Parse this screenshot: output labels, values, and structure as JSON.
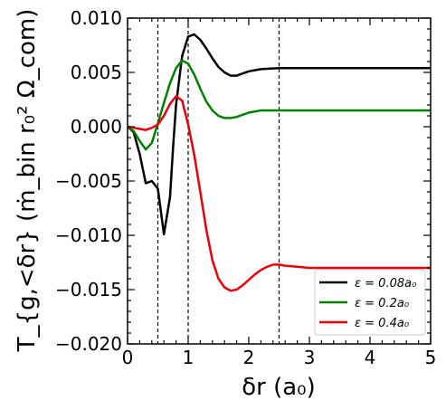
{
  "chart_data": {
    "type": "line",
    "xlabel": "δr (a₀)",
    "ylabel": "T_{g,<δr} (ṁ_bin r₀² Ω_com)",
    "xlim": [
      0,
      5
    ],
    "ylim": [
      -0.02,
      0.01
    ],
    "x_ticks": [
      "0",
      "1",
      "2",
      "3",
      "4",
      "5"
    ],
    "y_ticks": [
      "−0.020",
      "−0.015",
      "−0.010",
      "−0.005",
      "0.000",
      "0.005",
      "0.010"
    ],
    "x_tick_values": [
      0,
      1,
      2,
      3,
      4,
      5
    ],
    "y_tick_values": [
      -0.02,
      -0.015,
      -0.01,
      -0.005,
      0.0,
      0.005,
      0.01
    ],
    "vlines": [
      0.5,
      1.0,
      2.5
    ],
    "grid": false,
    "legend_position": "lower-right",
    "series": [
      {
        "name": "ε = 0.08a₀",
        "color": "#000000",
        "x": [
          0.0,
          0.1,
          0.2,
          0.3,
          0.4,
          0.5,
          0.6,
          0.7,
          0.75,
          0.8,
          0.9,
          1.0,
          1.1,
          1.2,
          1.3,
          1.4,
          1.5,
          1.6,
          1.7,
          1.8,
          1.9,
          2.0,
          2.2,
          2.5,
          3.0,
          3.5,
          4.0,
          4.5,
          5.0
        ],
        "y": [
          0.0,
          -0.0005,
          -0.0025,
          -0.0052,
          -0.005,
          -0.0057,
          -0.0099,
          -0.0065,
          -0.002,
          0.002,
          0.0065,
          0.0083,
          0.0085,
          0.008,
          0.0072,
          0.0063,
          0.0055,
          0.005,
          0.0047,
          0.0047,
          0.0049,
          0.0051,
          0.0053,
          0.0054,
          0.0054,
          0.0054,
          0.0054,
          0.0054,
          0.0054
        ]
      },
      {
        "name": "ε = 0.2a₀",
        "color": "#008000",
        "x": [
          0.0,
          0.1,
          0.2,
          0.3,
          0.4,
          0.5,
          0.6,
          0.7,
          0.8,
          0.9,
          1.0,
          1.1,
          1.2,
          1.3,
          1.4,
          1.5,
          1.6,
          1.7,
          1.8,
          1.9,
          2.0,
          2.2,
          2.5,
          3.0,
          3.5,
          4.0,
          4.5,
          5.0
        ],
        "y": [
          0.0,
          -0.0004,
          -0.0013,
          -0.0021,
          -0.0015,
          0.0003,
          0.0022,
          0.004,
          0.0054,
          0.0061,
          0.0058,
          0.0048,
          0.0035,
          0.0023,
          0.0015,
          0.001,
          0.0008,
          0.0008,
          0.0009,
          0.0011,
          0.0013,
          0.0015,
          0.0015,
          0.0015,
          0.0015,
          0.0015,
          0.0015,
          0.0015
        ]
      },
      {
        "name": "ε = 0.4a₀",
        "color": "#e8000b",
        "x": [
          0.0,
          0.1,
          0.2,
          0.3,
          0.4,
          0.5,
          0.6,
          0.7,
          0.8,
          0.9,
          1.0,
          1.1,
          1.2,
          1.3,
          1.4,
          1.5,
          1.6,
          1.7,
          1.8,
          1.9,
          2.0,
          2.1,
          2.2,
          2.3,
          2.4,
          2.5,
          2.6,
          2.8,
          3.0,
          3.5,
          4.0,
          4.5,
          5.0
        ],
        "y": [
          0.0,
          -0.0001,
          -0.0002,
          -0.0003,
          -0.0001,
          0.0002,
          0.001,
          0.0021,
          0.0028,
          0.0024,
          0.0002,
          -0.0026,
          -0.006,
          -0.0095,
          -0.0123,
          -0.014,
          -0.0148,
          -0.0151,
          -0.015,
          -0.0146,
          -0.0141,
          -0.0136,
          -0.0132,
          -0.0129,
          -0.0127,
          -0.0127,
          -0.0128,
          -0.0129,
          -0.013,
          -0.013,
          -0.013,
          -0.013,
          -0.013
        ]
      }
    ]
  }
}
